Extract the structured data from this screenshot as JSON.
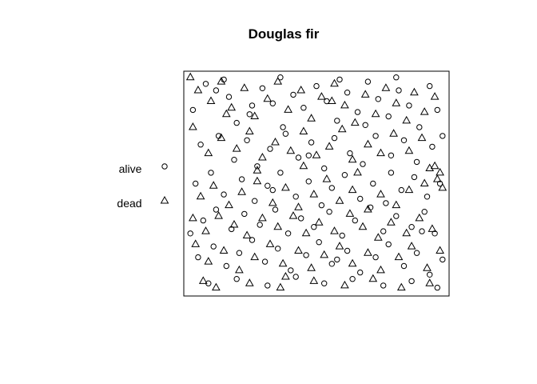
{
  "chart_data": {
    "type": "scatter",
    "title": "Douglas fir",
    "xlabel": "",
    "ylabel": "",
    "axes_drawn": false,
    "window": "rectangle",
    "xlim": [
      0,
      1
    ],
    "ylim": [
      0,
      1
    ],
    "legend_position": "left",
    "legend": [
      {
        "label": "alive",
        "symbol": "circle"
      },
      {
        "label": "dead",
        "symbol": "triangle"
      }
    ],
    "series": [
      {
        "name": "alive",
        "symbol": "circle",
        "points": [
          [
            0.02,
            0.84
          ],
          [
            0.07,
            0.96
          ],
          [
            0.11,
            0.93
          ],
          [
            0.16,
            0.9
          ],
          [
            0.19,
            0.78
          ],
          [
            0.24,
            0.82
          ],
          [
            0.29,
            0.94
          ],
          [
            0.33,
            0.87
          ],
          [
            0.37,
            0.76
          ],
          [
            0.41,
            0.91
          ],
          [
            0.45,
            0.85
          ],
          [
            0.5,
            0.95
          ],
          [
            0.54,
            0.88
          ],
          [
            0.58,
            0.79
          ],
          [
            0.62,
            0.92
          ],
          [
            0.66,
            0.83
          ],
          [
            0.7,
            0.97
          ],
          [
            0.74,
            0.89
          ],
          [
            0.78,
            0.81
          ],
          [
            0.82,
            0.93
          ],
          [
            0.86,
            0.86
          ],
          [
            0.9,
            0.76
          ],
          [
            0.94,
            0.95
          ],
          [
            0.97,
            0.84
          ],
          [
            0.05,
            0.68
          ],
          [
            0.12,
            0.72
          ],
          [
            0.18,
            0.61
          ],
          [
            0.23,
            0.7
          ],
          [
            0.27,
            0.58
          ],
          [
            0.32,
            0.66
          ],
          [
            0.38,
            0.73
          ],
          [
            0.43,
            0.62
          ],
          [
            0.48,
            0.69
          ],
          [
            0.53,
            0.57
          ],
          [
            0.57,
            0.71
          ],
          [
            0.63,
            0.64
          ],
          [
            0.68,
            0.59
          ],
          [
            0.73,
            0.72
          ],
          [
            0.79,
            0.63
          ],
          [
            0.84,
            0.7
          ],
          [
            0.89,
            0.6
          ],
          [
            0.95,
            0.67
          ],
          [
            0.03,
            0.5
          ],
          [
            0.09,
            0.55
          ],
          [
            0.14,
            0.45
          ],
          [
            0.21,
            0.52
          ],
          [
            0.26,
            0.42
          ],
          [
            0.31,
            0.49
          ],
          [
            0.36,
            0.55
          ],
          [
            0.42,
            0.44
          ],
          [
            0.47,
            0.51
          ],
          [
            0.52,
            0.4
          ],
          [
            0.56,
            0.48
          ],
          [
            0.61,
            0.54
          ],
          [
            0.67,
            0.43
          ],
          [
            0.72,
            0.5
          ],
          [
            0.77,
            0.41
          ],
          [
            0.83,
            0.47
          ],
          [
            0.88,
            0.53
          ],
          [
            0.93,
            0.44
          ],
          [
            0.98,
            0.5
          ],
          [
            0.06,
            0.33
          ],
          [
            0.11,
            0.38
          ],
          [
            0.17,
            0.29
          ],
          [
            0.22,
            0.36
          ],
          [
            0.28,
            0.31
          ],
          [
            0.34,
            0.38
          ],
          [
            0.39,
            0.27
          ],
          [
            0.44,
            0.34
          ],
          [
            0.49,
            0.3
          ],
          [
            0.55,
            0.37
          ],
          [
            0.6,
            0.26
          ],
          [
            0.65,
            0.33
          ],
          [
            0.71,
            0.39
          ],
          [
            0.76,
            0.28
          ],
          [
            0.81,
            0.35
          ],
          [
            0.87,
            0.3
          ],
          [
            0.92,
            0.37
          ],
          [
            0.96,
            0.27
          ],
          [
            0.04,
            0.16
          ],
          [
            0.1,
            0.21
          ],
          [
            0.15,
            0.12
          ],
          [
            0.2,
            0.18
          ],
          [
            0.25,
            0.24
          ],
          [
            0.3,
            0.14
          ],
          [
            0.35,
            0.2
          ],
          [
            0.4,
            0.1
          ],
          [
            0.46,
            0.17
          ],
          [
            0.51,
            0.23
          ],
          [
            0.56,
            0.13
          ],
          [
            0.62,
            0.19
          ],
          [
            0.67,
            0.09
          ],
          [
            0.73,
            0.16
          ],
          [
            0.78,
            0.22
          ],
          [
            0.84,
            0.12
          ],
          [
            0.89,
            0.18
          ],
          [
            0.94,
            0.08
          ],
          [
            0.99,
            0.15
          ],
          [
            0.08,
            0.04
          ],
          [
            0.19,
            0.06
          ],
          [
            0.31,
            0.03
          ],
          [
            0.42,
            0.07
          ],
          [
            0.53,
            0.04
          ],
          [
            0.64,
            0.06
          ],
          [
            0.76,
            0.03
          ],
          [
            0.87,
            0.05
          ],
          [
            0.97,
            0.02
          ],
          [
            0.14,
            0.98
          ],
          [
            0.36,
            0.99
          ],
          [
            0.59,
            0.98
          ],
          [
            0.81,
            0.99
          ],
          [
            0.01,
            0.27
          ],
          [
            0.99,
            0.72
          ],
          [
            0.47,
            0.63
          ],
          [
            0.25,
            0.86
          ],
          [
            0.69,
            0.77
          ],
          [
            0.91,
            0.28
          ],
          [
            0.33,
            0.47
          ],
          [
            0.58,
            0.15
          ],
          [
            0.79,
            0.55
          ]
        ]
      },
      {
        "name": "dead",
        "symbol": "triangle",
        "points": [
          [
            0.01,
            0.99
          ],
          [
            0.04,
            0.93
          ],
          [
            0.09,
            0.88
          ],
          [
            0.13,
            0.97
          ],
          [
            0.17,
            0.85
          ],
          [
            0.22,
            0.94
          ],
          [
            0.26,
            0.81
          ],
          [
            0.31,
            0.89
          ],
          [
            0.35,
            0.97
          ],
          [
            0.39,
            0.84
          ],
          [
            0.44,
            0.93
          ],
          [
            0.48,
            0.8
          ],
          [
            0.52,
            0.9
          ],
          [
            0.57,
            0.96
          ],
          [
            0.61,
            0.86
          ],
          [
            0.65,
            0.78
          ],
          [
            0.69,
            0.91
          ],
          [
            0.73,
            0.82
          ],
          [
            0.77,
            0.94
          ],
          [
            0.81,
            0.87
          ],
          [
            0.85,
            0.79
          ],
          [
            0.88,
            0.92
          ],
          [
            0.92,
            0.83
          ],
          [
            0.96,
            0.9
          ],
          [
            0.02,
            0.76
          ],
          [
            0.08,
            0.64
          ],
          [
            0.13,
            0.71
          ],
          [
            0.19,
            0.66
          ],
          [
            0.24,
            0.74
          ],
          [
            0.29,
            0.62
          ],
          [
            0.34,
            0.69
          ],
          [
            0.4,
            0.65
          ],
          [
            0.45,
            0.74
          ],
          [
            0.5,
            0.63
          ],
          [
            0.55,
            0.67
          ],
          [
            0.6,
            0.75
          ],
          [
            0.64,
            0.61
          ],
          [
            0.7,
            0.68
          ],
          [
            0.75,
            0.64
          ],
          [
            0.8,
            0.73
          ],
          [
            0.86,
            0.65
          ],
          [
            0.91,
            0.71
          ],
          [
            0.96,
            0.58
          ],
          [
            0.98,
            0.55
          ],
          [
            0.97,
            0.52
          ],
          [
            0.99,
            0.48
          ],
          [
            0.94,
            0.57
          ],
          [
            0.92,
            0.5
          ],
          [
            0.05,
            0.44
          ],
          [
            0.1,
            0.49
          ],
          [
            0.16,
            0.4
          ],
          [
            0.21,
            0.46
          ],
          [
            0.27,
            0.51
          ],
          [
            0.33,
            0.41
          ],
          [
            0.38,
            0.48
          ],
          [
            0.43,
            0.39
          ],
          [
            0.49,
            0.45
          ],
          [
            0.54,
            0.52
          ],
          [
            0.59,
            0.42
          ],
          [
            0.64,
            0.47
          ],
          [
            0.7,
            0.38
          ],
          [
            0.75,
            0.45
          ],
          [
            0.81,
            0.4
          ],
          [
            0.86,
            0.47
          ],
          [
            0.02,
            0.34
          ],
          [
            0.07,
            0.28
          ],
          [
            0.12,
            0.35
          ],
          [
            0.18,
            0.31
          ],
          [
            0.23,
            0.26
          ],
          [
            0.29,
            0.34
          ],
          [
            0.35,
            0.3
          ],
          [
            0.41,
            0.35
          ],
          [
            0.46,
            0.27
          ],
          [
            0.51,
            0.32
          ],
          [
            0.57,
            0.28
          ],
          [
            0.63,
            0.36
          ],
          [
            0.68,
            0.3
          ],
          [
            0.74,
            0.25
          ],
          [
            0.79,
            0.32
          ],
          [
            0.85,
            0.27
          ],
          [
            0.9,
            0.34
          ],
          [
            0.95,
            0.29
          ],
          [
            0.03,
            0.22
          ],
          [
            0.08,
            0.14
          ],
          [
            0.14,
            0.19
          ],
          [
            0.2,
            0.1
          ],
          [
            0.26,
            0.16
          ],
          [
            0.32,
            0.22
          ],
          [
            0.37,
            0.13
          ],
          [
            0.43,
            0.19
          ],
          [
            0.48,
            0.11
          ],
          [
            0.53,
            0.17
          ],
          [
            0.59,
            0.21
          ],
          [
            0.64,
            0.13
          ],
          [
            0.7,
            0.18
          ],
          [
            0.75,
            0.1
          ],
          [
            0.82,
            0.16
          ],
          [
            0.87,
            0.21
          ],
          [
            0.93,
            0.11
          ],
          [
            0.98,
            0.19
          ],
          [
            0.06,
            0.05
          ],
          [
            0.11,
            0.02
          ],
          [
            0.24,
            0.04
          ],
          [
            0.36,
            0.02
          ],
          [
            0.49,
            0.05
          ],
          [
            0.61,
            0.03
          ],
          [
            0.72,
            0.06
          ],
          [
            0.83,
            0.02
          ],
          [
            0.94,
            0.04
          ],
          [
            0.45,
            0.58
          ],
          [
            0.27,
            0.56
          ],
          [
            0.66,
            0.55
          ],
          [
            0.15,
            0.82
          ],
          [
            0.56,
            0.88
          ],
          [
            0.38,
            0.07
          ]
        ]
      }
    ]
  }
}
